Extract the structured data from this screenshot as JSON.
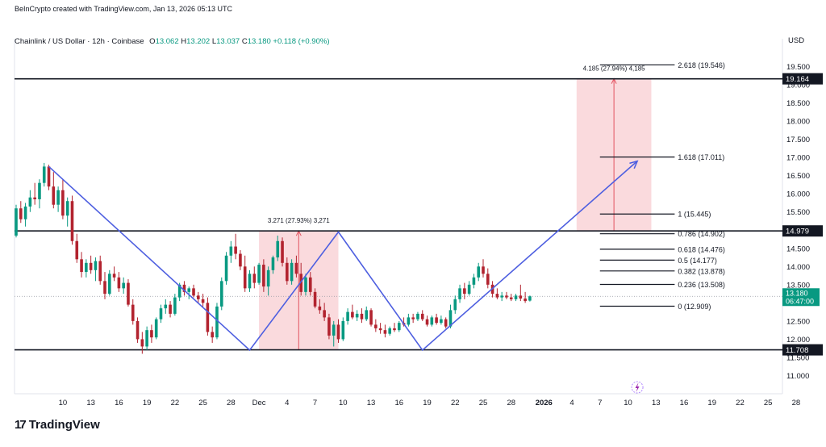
{
  "header": {
    "attribution": "BeInCrypto created with TradingView.com, Jan 13, 2026 05:13 UTC",
    "symbol": "Chainlink / US Dollar · 12h · Coinbase",
    "open_label": "O",
    "open": "13.062",
    "high_label": "H",
    "high": "13.202",
    "low_label": "L",
    "low": "13.037",
    "close_label": "C",
    "close": "13.180",
    "change": "+0.118 (+0.90%)",
    "currency": "USD"
  },
  "footer": {
    "logo_mark": "17",
    "logo_text": "TradingView"
  },
  "colors": {
    "up": "#089981",
    "down": "#b2232f",
    "pattern": "#4e5fe0",
    "zone": "#f9d3d7",
    "zone_line": "#e2525f",
    "line": "#131722"
  },
  "chart_data": {
    "type": "candlestick",
    "title": "Chainlink / US Dollar · 12h · Coinbase",
    "ylim": [
      10.5,
      20.0
    ],
    "y_ticks": [
      "11.000",
      "11.500",
      "12.000",
      "12.500",
      "13.000",
      "13.500",
      "14.000",
      "14.500",
      "15.000",
      "15.500",
      "16.000",
      "16.500",
      "17.000",
      "17.500",
      "18.000",
      "18.500",
      "19.000",
      "19.500"
    ],
    "x_ticks": [
      {
        "label": "10",
        "bar": 10
      },
      {
        "label": "13",
        "bar": 16
      },
      {
        "label": "16",
        "bar": 22
      },
      {
        "label": "19",
        "bar": 28
      },
      {
        "label": "22",
        "bar": 34
      },
      {
        "label": "25",
        "bar": 40
      },
      {
        "label": "28",
        "bar": 46
      },
      {
        "label": "Dec",
        "bar": 52
      },
      {
        "label": "4",
        "bar": 58
      },
      {
        "label": "7",
        "bar": 64
      },
      {
        "label": "10",
        "bar": 70
      },
      {
        "label": "13",
        "bar": 76
      },
      {
        "label": "16",
        "bar": 82
      },
      {
        "label": "19",
        "bar": 88
      },
      {
        "label": "22",
        "bar": 94
      },
      {
        "label": "25",
        "bar": 100
      },
      {
        "label": "28",
        "bar": 106
      },
      {
        "label": "2026",
        "bar": 113
      },
      {
        "label": "4",
        "bar": 119
      },
      {
        "label": "7",
        "bar": 125
      },
      {
        "label": "10",
        "bar": 131
      },
      {
        "label": "13",
        "bar": 137
      },
      {
        "label": "16",
        "bar": 143
      },
      {
        "label": "19",
        "bar": 149
      },
      {
        "label": "22",
        "bar": 155
      },
      {
        "label": "25",
        "bar": 161
      },
      {
        "label": "28",
        "bar": 167
      }
    ],
    "candles": [
      [
        14.85,
        15.7,
        14.8,
        15.6
      ],
      [
        15.6,
        15.8,
        15.2,
        15.3
      ],
      [
        15.3,
        15.75,
        15.1,
        15.65
      ],
      [
        15.65,
        16.1,
        15.5,
        15.9
      ],
      [
        15.9,
        16.3,
        15.7,
        15.85
      ],
      [
        15.85,
        16.4,
        15.6,
        16.3
      ],
      [
        16.3,
        16.85,
        16.2,
        16.75
      ],
      [
        16.75,
        16.8,
        16.1,
        16.2
      ],
      [
        16.2,
        16.6,
        15.6,
        15.7
      ],
      [
        15.7,
        16.2,
        15.5,
        16.1
      ],
      [
        16.1,
        16.4,
        15.3,
        15.4
      ],
      [
        15.4,
        15.9,
        15.1,
        15.8
      ],
      [
        15.8,
        15.95,
        14.6,
        14.7
      ],
      [
        14.7,
        14.9,
        14.1,
        14.2
      ],
      [
        14.2,
        14.4,
        13.7,
        13.85
      ],
      [
        13.85,
        14.2,
        13.7,
        14.1
      ],
      [
        14.1,
        14.3,
        13.8,
        13.9
      ],
      [
        13.9,
        14.25,
        13.6,
        14.15
      ],
      [
        14.15,
        14.3,
        13.5,
        13.6
      ],
      [
        13.6,
        13.85,
        13.1,
        13.25
      ],
      [
        13.25,
        13.9,
        13.2,
        13.8
      ],
      [
        13.8,
        14.0,
        13.6,
        13.7
      ],
      [
        13.7,
        13.85,
        13.3,
        13.4
      ],
      [
        13.4,
        13.7,
        13.25,
        13.55
      ],
      [
        13.55,
        13.65,
        12.9,
        12.95
      ],
      [
        12.95,
        13.1,
        12.4,
        12.5
      ],
      [
        12.5,
        12.6,
        11.9,
        12.0
      ],
      [
        12.0,
        12.2,
        11.6,
        11.8
      ],
      [
        11.8,
        12.35,
        11.7,
        12.25
      ],
      [
        12.25,
        12.4,
        11.9,
        12.05
      ],
      [
        12.05,
        12.6,
        12.0,
        12.55
      ],
      [
        12.55,
        12.95,
        12.45,
        12.85
      ],
      [
        12.85,
        13.1,
        12.7,
        12.95
      ],
      [
        12.95,
        13.05,
        12.6,
        12.7
      ],
      [
        12.7,
        13.25,
        12.65,
        13.15
      ],
      [
        13.15,
        13.55,
        13.05,
        13.5
      ],
      [
        13.5,
        13.6,
        13.2,
        13.3
      ],
      [
        13.3,
        13.45,
        13.1,
        13.4
      ],
      [
        13.4,
        13.5,
        13.15,
        13.2
      ],
      [
        13.2,
        13.3,
        13.0,
        13.1
      ],
      [
        13.1,
        13.25,
        12.9,
        13.0
      ],
      [
        13.0,
        13.15,
        12.1,
        12.2
      ],
      [
        12.2,
        12.35,
        11.9,
        12.05
      ],
      [
        12.05,
        13.0,
        12.0,
        12.9
      ],
      [
        12.9,
        13.7,
        12.8,
        13.6
      ],
      [
        13.6,
        14.4,
        13.5,
        14.3
      ],
      [
        14.3,
        14.7,
        14.1,
        14.55
      ],
      [
        14.55,
        14.9,
        14.2,
        14.35
      ],
      [
        14.35,
        14.45,
        13.9,
        14.0
      ],
      [
        14.0,
        14.3,
        13.3,
        13.4
      ],
      [
        13.4,
        13.9,
        13.3,
        13.8
      ],
      [
        13.8,
        14.0,
        13.4,
        13.55
      ],
      [
        13.55,
        14.1,
        13.5,
        14.05
      ],
      [
        14.05,
        14.2,
        13.3,
        13.45
      ],
      [
        13.45,
        14.0,
        13.2,
        13.9
      ],
      [
        13.9,
        14.3,
        13.8,
        14.25
      ],
      [
        14.25,
        14.85,
        14.15,
        14.7
      ],
      [
        14.7,
        14.8,
        14.0,
        14.1
      ],
      [
        14.1,
        14.25,
        13.5,
        13.6
      ],
      [
        13.6,
        14.2,
        13.5,
        14.1
      ],
      [
        14.1,
        14.3,
        13.7,
        13.8
      ],
      [
        13.8,
        14.1,
        13.2,
        13.3
      ],
      [
        13.3,
        13.8,
        13.2,
        13.7
      ],
      [
        13.7,
        13.85,
        13.2,
        13.3
      ],
      [
        13.3,
        13.4,
        12.85,
        12.9
      ],
      [
        12.9,
        13.1,
        12.7,
        12.8
      ],
      [
        12.8,
        13.0,
        12.5,
        12.6
      ],
      [
        12.6,
        12.7,
        12.0,
        12.1
      ],
      [
        12.1,
        12.5,
        11.8,
        12.4
      ],
      [
        12.4,
        12.55,
        11.9,
        12.0
      ],
      [
        12.0,
        12.6,
        11.95,
        12.5
      ],
      [
        12.5,
        12.85,
        12.4,
        12.75
      ],
      [
        12.75,
        12.95,
        12.55,
        12.6
      ],
      [
        12.6,
        12.8,
        12.5,
        12.7
      ],
      [
        12.7,
        12.85,
        12.45,
        12.55
      ],
      [
        12.55,
        12.9,
        12.5,
        12.8
      ],
      [
        12.8,
        12.85,
        12.35,
        12.4
      ],
      [
        12.4,
        12.55,
        12.2,
        12.3
      ],
      [
        12.3,
        12.45,
        12.15,
        12.25
      ],
      [
        12.25,
        12.4,
        12.05,
        12.15
      ],
      [
        12.15,
        12.35,
        12.1,
        12.3
      ],
      [
        12.3,
        12.45,
        12.2,
        12.25
      ],
      [
        12.25,
        12.5,
        12.2,
        12.45
      ],
      [
        12.45,
        12.6,
        12.35,
        12.4
      ],
      [
        12.4,
        12.7,
        12.35,
        12.6
      ],
      [
        12.6,
        12.7,
        12.45,
        12.55
      ],
      [
        12.55,
        12.75,
        12.5,
        12.7
      ],
      [
        12.7,
        12.8,
        12.5,
        12.55
      ],
      [
        12.55,
        12.65,
        12.35,
        12.4
      ],
      [
        12.4,
        12.65,
        12.35,
        12.6
      ],
      [
        12.6,
        12.7,
        12.4,
        12.45
      ],
      [
        12.45,
        12.65,
        12.4,
        12.55
      ],
      [
        12.55,
        12.6,
        12.3,
        12.35
      ],
      [
        12.35,
        12.95,
        12.3,
        12.8
      ],
      [
        12.8,
        13.2,
        12.7,
        13.1
      ],
      [
        13.1,
        13.5,
        13.0,
        13.4
      ],
      [
        13.4,
        13.55,
        13.1,
        13.25
      ],
      [
        13.25,
        13.6,
        13.2,
        13.5
      ],
      [
        13.5,
        13.8,
        13.4,
        13.7
      ],
      [
        13.7,
        14.1,
        13.6,
        14.0
      ],
      [
        14.0,
        14.2,
        13.7,
        13.8
      ],
      [
        13.8,
        13.95,
        13.4,
        13.5
      ],
      [
        13.5,
        13.6,
        13.15,
        13.25
      ],
      [
        13.25,
        13.4,
        13.1,
        13.15
      ],
      [
        13.15,
        13.3,
        13.05,
        13.2
      ],
      [
        13.2,
        13.3,
        13.1,
        13.15
      ],
      [
        13.15,
        13.25,
        13.05,
        13.1
      ],
      [
        13.1,
        13.25,
        13.05,
        13.2
      ],
      [
        13.2,
        13.5,
        13.05,
        13.12
      ],
      [
        13.12,
        13.3,
        13.0,
        13.05
      ],
      [
        13.062,
        13.202,
        13.037,
        13.18
      ]
    ],
    "candle_start_bar": 0,
    "horizontal_levels": [
      {
        "value": 19.164,
        "label": "19.164"
      },
      {
        "value": 14.979,
        "label": "14.979"
      },
      {
        "value": 11.708,
        "label": "11.708"
      }
    ],
    "current_price": {
      "value": 13.18,
      "label": "13.180",
      "countdown": "06:47:00"
    },
    "fibonacci": {
      "start_bar": 125,
      "end_bar": 141,
      "levels": [
        {
          "value": 12.909,
          "label": "0 (12.909)"
        },
        {
          "value": 13.508,
          "label": "0.236 (13.508)"
        },
        {
          "value": 13.878,
          "label": "0.382 (13.878)"
        },
        {
          "value": 14.177,
          "label": "0.5 (14.177)"
        },
        {
          "value": 14.476,
          "label": "0.618 (14.476)"
        },
        {
          "value": 14.902,
          "label": "0.786 (14.902)"
        },
        {
          "value": 15.445,
          "label": "1 (15.445)"
        },
        {
          "value": 17.011,
          "label": "1.618 (17.011)"
        },
        {
          "value": 19.546,
          "label": "2.618 (19.546)"
        }
      ]
    },
    "pattern_path": [
      {
        "bar": 7,
        "value": 16.75
      },
      {
        "bar": 50,
        "value": 11.7
      },
      {
        "bar": 69,
        "value": 14.95
      },
      {
        "bar": 87,
        "value": 11.7
      },
      {
        "bar": 133,
        "value": 16.9
      }
    ],
    "measure_zones": [
      {
        "bar_start": 52,
        "bar_end": 69,
        "low": 11.708,
        "high": 14.979,
        "label": "3.271 (27.93%) 3,271"
      },
      {
        "bar_start": 120,
        "bar_end": 136,
        "low": 14.979,
        "high": 19.164,
        "label": "4.185 (27.94%) 4,185"
      }
    ]
  }
}
